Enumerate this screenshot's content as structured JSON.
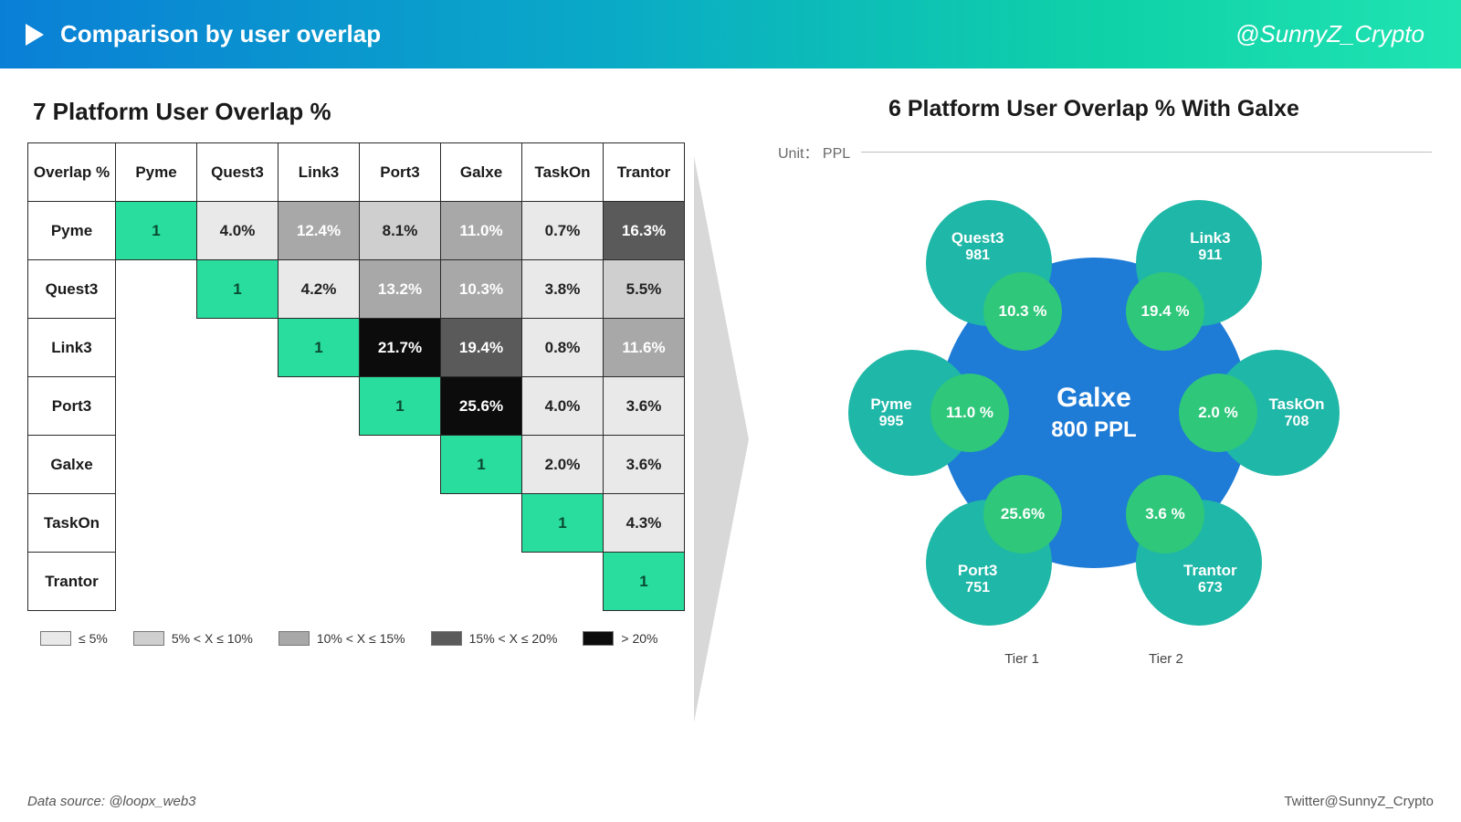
{
  "header": {
    "title": "Comparison by user overlap",
    "handle": "@SunnyZ_Crypto",
    "gradient_colors": [
      "#0a7fd6",
      "#0aa8c8",
      "#0fd1a8",
      "#20e3b2"
    ]
  },
  "matrix": {
    "title": "7 Platform User Overlap %",
    "corner_label": "Overlap %",
    "columns": [
      "Pyme",
      "Quest3",
      "Link3",
      "Port3",
      "Galxe",
      "TaskOn",
      "Trantor"
    ],
    "rows": [
      "Pyme",
      "Quest3",
      "Link3",
      "Port3",
      "Galxe",
      "TaskOn",
      "Trantor"
    ],
    "cells": [
      [
        {
          "v": "1",
          "b": "diag"
        },
        {
          "v": "4.0%",
          "b": "b1"
        },
        {
          "v": "12.4%",
          "b": "b3"
        },
        {
          "v": "8.1%",
          "b": "b2"
        },
        {
          "v": "11.0%",
          "b": "b3"
        },
        {
          "v": "0.7%",
          "b": "b1"
        },
        {
          "v": "16.3%",
          "b": "b4"
        }
      ],
      [
        {
          "v": "",
          "b": "empty"
        },
        {
          "v": "1",
          "b": "diag"
        },
        {
          "v": "4.2%",
          "b": "b1"
        },
        {
          "v": "13.2%",
          "b": "b3"
        },
        {
          "v": "10.3%",
          "b": "b3"
        },
        {
          "v": "3.8%",
          "b": "b1"
        },
        {
          "v": "5.5%",
          "b": "b2"
        }
      ],
      [
        {
          "v": "",
          "b": "empty"
        },
        {
          "v": "",
          "b": "empty"
        },
        {
          "v": "1",
          "b": "diag"
        },
        {
          "v": "21.7%",
          "b": "b5"
        },
        {
          "v": "19.4%",
          "b": "b4"
        },
        {
          "v": "0.8%",
          "b": "b1"
        },
        {
          "v": "11.6%",
          "b": "b3"
        }
      ],
      [
        {
          "v": "",
          "b": "empty"
        },
        {
          "v": "",
          "b": "empty"
        },
        {
          "v": "",
          "b": "empty"
        },
        {
          "v": "1",
          "b": "diag"
        },
        {
          "v": "25.6%",
          "b": "b5"
        },
        {
          "v": "4.0%",
          "b": "b1"
        },
        {
          "v": "3.6%",
          "b": "b1"
        }
      ],
      [
        {
          "v": "",
          "b": "empty"
        },
        {
          "v": "",
          "b": "empty"
        },
        {
          "v": "",
          "b": "empty"
        },
        {
          "v": "",
          "b": "empty"
        },
        {
          "v": "1",
          "b": "diag"
        },
        {
          "v": "2.0%",
          "b": "b1"
        },
        {
          "v": "3.6%",
          "b": "b1"
        }
      ],
      [
        {
          "v": "",
          "b": "empty"
        },
        {
          "v": "",
          "b": "empty"
        },
        {
          "v": "",
          "b": "empty"
        },
        {
          "v": "",
          "b": "empty"
        },
        {
          "v": "",
          "b": "empty"
        },
        {
          "v": "1",
          "b": "diag"
        },
        {
          "v": "4.3%",
          "b": "b1"
        }
      ],
      [
        {
          "v": "",
          "b": "empty"
        },
        {
          "v": "",
          "b": "empty"
        },
        {
          "v": "",
          "b": "empty"
        },
        {
          "v": "",
          "b": "empty"
        },
        {
          "v": "",
          "b": "empty"
        },
        {
          "v": "",
          "b": "empty"
        },
        {
          "v": "1",
          "b": "diag"
        }
      ]
    ],
    "bucket_colors": {
      "diag": {
        "bg": "#28dd9e",
        "fg": "#0a4a34"
      },
      "b1": {
        "bg": "#e9e9e9",
        "fg": "#222222"
      },
      "b2": {
        "bg": "#cfcfcf",
        "fg": "#222222"
      },
      "b3": {
        "bg": "#a8a8a8",
        "fg": "#ffffff"
      },
      "b4": {
        "bg": "#5a5a5a",
        "fg": "#ffffff"
      },
      "b5": {
        "bg": "#0c0c0c",
        "fg": "#ffffff"
      },
      "empty": {
        "bg": "#ffffff",
        "fg": "#ffffff"
      }
    },
    "legend": [
      {
        "label": "≤ 5%",
        "color": "#e9e9e9"
      },
      {
        "label": "5% < X ≤ 10%",
        "color": "#cfcfcf"
      },
      {
        "label": "10% < X ≤ 15%",
        "color": "#a8a8a8"
      },
      {
        "label": "15% < X ≤ 20%",
        "color": "#5a5a5a"
      },
      {
        "label": "> 20%",
        "color": "#0c0c0c"
      }
    ]
  },
  "venn": {
    "title": "6 Platform User Overlap % With Galxe",
    "unit_label": "Unit： PPL",
    "center": {
      "name": "Galxe",
      "value": "800 PPL",
      "color": "#1e7bd6",
      "diameter": 340
    },
    "satellites": [
      {
        "name": "Quest3",
        "value": "981",
        "pct": "10.3 %",
        "color": "#1fb7a7",
        "angle": -125,
        "tier": 1
      },
      {
        "name": "Link3",
        "value": "911",
        "pct": "19.4 %",
        "color": "#1fb7a7",
        "angle": -55,
        "tier": 1
      },
      {
        "name": "Pyme",
        "value": "995",
        "pct": "11.0 %",
        "color": "#1fb7a7",
        "angle": 180,
        "tier": 1
      },
      {
        "name": "TaskOn",
        "value": "708",
        "pct": "2.0 %",
        "color": "#1fb7a7",
        "angle": 0,
        "tier": 2
      },
      {
        "name": "Port3",
        "value": "751",
        "pct": "25.6%",
        "color": "#1fb7a7",
        "angle": 125,
        "tier": 1
      },
      {
        "name": "Trantor",
        "value": "673",
        "pct": "3.6 %",
        "color": "#1fb7a7",
        "angle": 55,
        "tier": 2
      }
    ],
    "satellite_diameter": 138,
    "overlap_color": "#2fc77a",
    "overlap_diameter": 86,
    "orbit_radius": 200,
    "tier_labels": [
      "Tier 1",
      "Tier 2"
    ]
  },
  "footer": {
    "source": "Data source: @loopx_web3",
    "credit": "Twitter@SunnyZ_Crypto"
  }
}
